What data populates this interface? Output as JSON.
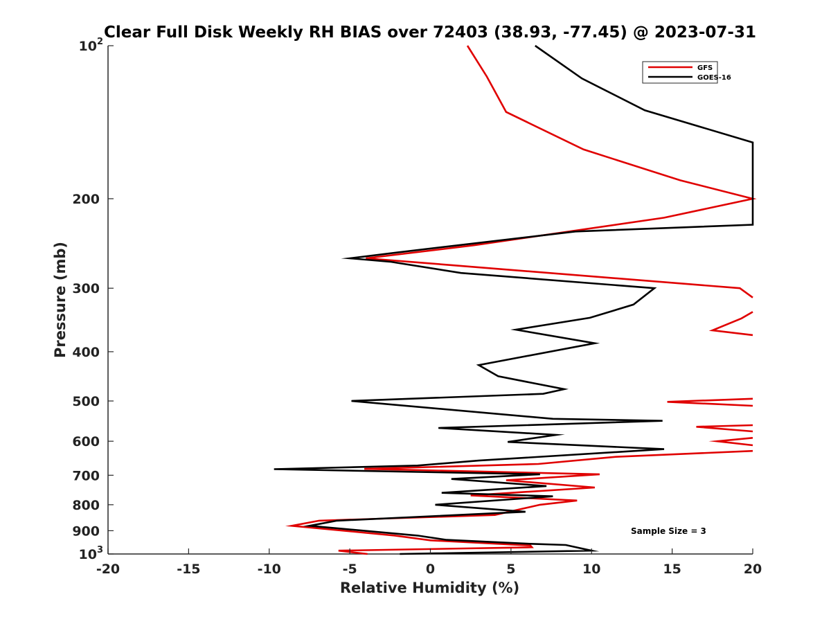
{
  "chart_data": {
    "type": "line",
    "title": "Clear Full Disk Weekly RH BIAS over 72403 (38.93, -77.45) @ 2023-07-31",
    "xlabel": "Relative Humidity (%)",
    "ylabel": "Pressure (mb)",
    "xlim": [
      -20,
      20
    ],
    "ylim": [
      100,
      1000
    ],
    "yscale": "log",
    "y_reversed": true,
    "grid": false,
    "legend_position": "top-right",
    "x_ticks": [
      "-20",
      "-15",
      "-10",
      "-5",
      "0",
      "5",
      "10",
      "15",
      "20"
    ],
    "y_ticks": [
      {
        "value": 100,
        "base": "10",
        "exp": "2"
      },
      {
        "value": 200,
        "label": "200"
      },
      {
        "value": 300,
        "label": "300"
      },
      {
        "value": 400,
        "label": "400"
      },
      {
        "value": 500,
        "label": "500"
      },
      {
        "value": 600,
        "label": "600"
      },
      {
        "value": 700,
        "label": "700"
      },
      {
        "value": 800,
        "label": "800"
      },
      {
        "value": 900,
        "label": "900"
      },
      {
        "value": 1000,
        "base": "10",
        "exp": "3"
      }
    ],
    "annotation": "Sample Size = 3",
    "series": [
      {
        "name": "GFS",
        "color": "#e00000",
        "points": [
          [
            2.3,
            100
          ],
          [
            3.5,
            115
          ],
          [
            4.7,
            135
          ],
          [
            9.5,
            160
          ],
          [
            15.5,
            184
          ],
          [
            20,
            200
          ],
          [
            14.5,
            218
          ],
          [
            2.7,
            247
          ],
          [
            -4.0,
            262
          ],
          [
            19.2,
            300
          ],
          [
            20,
            313
          ],
          [
            null,
            null
          ],
          [
            20,
            334
          ],
          [
            19.3,
            344
          ],
          [
            17.5,
            363
          ],
          [
            20,
            371
          ],
          [
            null,
            null
          ],
          [
            20,
            495
          ],
          [
            14.7,
            502
          ],
          [
            20,
            511
          ],
          [
            null,
            null
          ],
          [
            20,
            558
          ],
          [
            16.5,
            562
          ],
          [
            20,
            574
          ],
          [
            null,
            null
          ],
          [
            20,
            591
          ],
          [
            17.8,
            600
          ],
          [
            20,
            611
          ],
          [
            null,
            null
          ],
          [
            20,
            627
          ],
          [
            11.5,
            644
          ],
          [
            6.7,
            665
          ],
          [
            -4.1,
            680
          ],
          [
            10.5,
            697
          ],
          [
            4.7,
            716
          ],
          [
            10.2,
            740
          ],
          [
            2.5,
            767
          ],
          [
            9.1,
            785
          ],
          [
            6.8,
            800
          ],
          [
            4.0,
            838
          ],
          [
            -6.9,
            860
          ],
          [
            -8.6,
            880
          ],
          [
            -2.2,
            920
          ],
          [
            0,
            940
          ],
          [
            6.2,
            962
          ],
          [
            6.3,
            970
          ],
          [
            -5.7,
            985
          ],
          [
            -3.9,
            1000
          ]
        ]
      },
      {
        "name": "GOES-16",
        "color": "#000000",
        "points": [
          [
            6.5,
            100
          ],
          [
            9.4,
            116
          ],
          [
            13.3,
            134
          ],
          [
            20,
            155
          ],
          [
            20,
            225
          ],
          [
            9.0,
            232
          ],
          [
            -2.0,
            255
          ],
          [
            -5.0,
            262
          ],
          [
            -2.5,
            266
          ],
          [
            1.9,
            280
          ],
          [
            13.9,
            300
          ],
          [
            12.6,
            323
          ],
          [
            9.9,
            343
          ],
          [
            5.3,
            362
          ],
          [
            10.2,
            385
          ],
          [
            3.0,
            425
          ],
          [
            4.2,
            447
          ],
          [
            8.3,
            474
          ],
          [
            7.0,
            484
          ],
          [
            -4.9,
            500
          ],
          [
            7.6,
            542
          ],
          [
            14.4,
            547
          ],
          [
            0.5,
            565
          ],
          [
            7.8,
            583
          ],
          [
            4.8,
            602
          ],
          [
            14.5,
            622
          ],
          [
            3.0,
            655
          ],
          [
            -0.8,
            670
          ],
          [
            -9.7,
            681
          ],
          [
            6.8,
            697
          ],
          [
            1.3,
            712
          ],
          [
            7.2,
            735
          ],
          [
            0.7,
            758
          ],
          [
            7.6,
            770
          ],
          [
            0.3,
            800
          ],
          [
            5.9,
            826
          ],
          [
            -5.8,
            860
          ],
          [
            -7.5,
            880
          ],
          [
            -0.8,
            920
          ],
          [
            1.0,
            938
          ],
          [
            6.2,
            955
          ],
          [
            8.4,
            960
          ],
          [
            10.0,
            985
          ],
          [
            -1.9,
            1000
          ]
        ]
      }
    ]
  }
}
